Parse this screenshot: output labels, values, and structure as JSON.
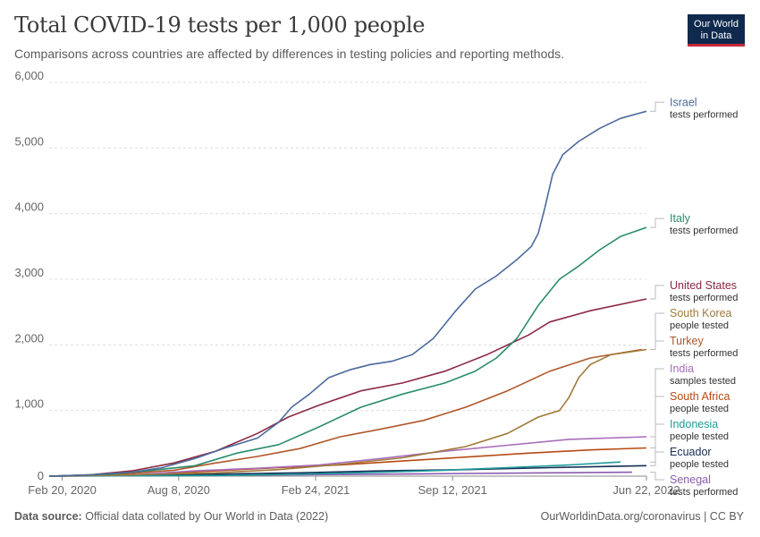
{
  "header": {
    "title": "Total COVID-19 tests per 1,000 people",
    "subtitle": "Comparisons across countries are affected by differences in testing policies and reporting methods.",
    "logo_line1": "Our World",
    "logo_line2": "in Data"
  },
  "footer": {
    "source_label": "Data source:",
    "source_text": "Official data collated by Our World in Data (2022)",
    "right_text": "OurWorldinData.org/coronavirus | CC BY"
  },
  "colors": {
    "israel": "#4c6a9c",
    "italy": "#2a8c6c",
    "united_states": "#8b2942",
    "south_korea": "#a07a3a",
    "turkey": "#b0572a",
    "india": "#a86cba",
    "south_africa": "#b84a12",
    "indonesia": "#1e9a9a",
    "ecuador": "#172d55",
    "senegal": "#8a5ab0"
  },
  "chart_data": {
    "type": "line",
    "x_type": "date",
    "xlim": [
      "2020-02-01",
      "2022-06-22"
    ],
    "ylim": [
      0,
      6000
    ],
    "y_ticks": [
      0,
      1000,
      2000,
      3000,
      4000,
      5000,
      6000
    ],
    "y_tick_labels": [
      "0",
      "1,000",
      "2,000",
      "3,000",
      "4,000",
      "5,000",
      "6,000"
    ],
    "x_ticks": [
      "2020-02-20",
      "2020-08-08",
      "2021-02-24",
      "2021-09-12",
      "2022-06-22"
    ],
    "x_tick_labels": [
      "Feb 20, 2020",
      "Aug 8, 2020",
      "Feb 24, 2021",
      "Sep 12, 2021",
      "Jun 22, 2022"
    ],
    "grid": "horizontal",
    "legend": "right",
    "series": [
      {
        "key": "israel",
        "name": "Israel",
        "sublabel": "tests performed",
        "color": "#4c6a9c",
        "points": [
          [
            "2020-02-01",
            0
          ],
          [
            "2020-04-01",
            20
          ],
          [
            "2020-06-01",
            60
          ],
          [
            "2020-07-15",
            130
          ],
          [
            "2020-09-01",
            270
          ],
          [
            "2020-10-15",
            430
          ],
          [
            "2020-12-01",
            580
          ],
          [
            "2021-01-01",
            820
          ],
          [
            "2021-01-20",
            1050
          ],
          [
            "2021-02-15",
            1250
          ],
          [
            "2021-03-15",
            1500
          ],
          [
            "2021-04-15",
            1620
          ],
          [
            "2021-05-15",
            1700
          ],
          [
            "2021-06-15",
            1750
          ],
          [
            "2021-07-15",
            1850
          ],
          [
            "2021-08-15",
            2100
          ],
          [
            "2021-09-15",
            2500
          ],
          [
            "2021-10-15",
            2850
          ],
          [
            "2021-11-15",
            3050
          ],
          [
            "2021-12-15",
            3300
          ],
          [
            "2022-01-05",
            3500
          ],
          [
            "2022-01-15",
            3700
          ],
          [
            "2022-01-25",
            4100
          ],
          [
            "2022-02-05",
            4600
          ],
          [
            "2022-02-20",
            4900
          ],
          [
            "2022-03-15",
            5100
          ],
          [
            "2022-04-15",
            5300
          ],
          [
            "2022-05-15",
            5450
          ],
          [
            "2022-06-22",
            5560
          ]
        ]
      },
      {
        "key": "italy",
        "name": "Italy",
        "sublabel": "tests performed",
        "color": "#2a8c6c",
        "points": [
          [
            "2020-02-01",
            0
          ],
          [
            "2020-05-01",
            30
          ],
          [
            "2020-07-01",
            90
          ],
          [
            "2020-09-01",
            160
          ],
          [
            "2020-11-01",
            350
          ],
          [
            "2021-01-01",
            480
          ],
          [
            "2021-03-01",
            750
          ],
          [
            "2021-05-01",
            1050
          ],
          [
            "2021-07-01",
            1250
          ],
          [
            "2021-09-01",
            1420
          ],
          [
            "2021-10-15",
            1600
          ],
          [
            "2021-11-15",
            1800
          ],
          [
            "2021-12-15",
            2100
          ],
          [
            "2022-01-15",
            2600
          ],
          [
            "2022-02-15",
            3000
          ],
          [
            "2022-03-15",
            3200
          ],
          [
            "2022-04-15",
            3450
          ],
          [
            "2022-05-15",
            3650
          ],
          [
            "2022-06-22",
            3790
          ]
        ]
      },
      {
        "key": "united_states",
        "name": "United States",
        "sublabel": "tests performed",
        "color": "#8b2942",
        "points": [
          [
            "2020-02-01",
            0
          ],
          [
            "2020-04-01",
            20
          ],
          [
            "2020-06-01",
            80
          ],
          [
            "2020-08-01",
            200
          ],
          [
            "2020-10-01",
            380
          ],
          [
            "2020-12-01",
            650
          ],
          [
            "2021-01-15",
            900
          ],
          [
            "2021-03-01",
            1080
          ],
          [
            "2021-05-01",
            1300
          ],
          [
            "2021-07-01",
            1420
          ],
          [
            "2021-09-01",
            1600
          ],
          [
            "2021-11-01",
            1850
          ],
          [
            "2022-01-01",
            2150
          ],
          [
            "2022-02-01",
            2350
          ],
          [
            "2022-04-01",
            2520
          ],
          [
            "2022-06-22",
            2700
          ]
        ]
      },
      {
        "key": "south_korea",
        "name": "South Korea",
        "sublabel": "people tested",
        "color": "#a07a3a",
        "points": [
          [
            "2020-02-01",
            0
          ],
          [
            "2020-06-01",
            20
          ],
          [
            "2020-10-01",
            50
          ],
          [
            "2021-01-01",
            100
          ],
          [
            "2021-04-01",
            180
          ],
          [
            "2021-07-01",
            280
          ],
          [
            "2021-10-01",
            450
          ],
          [
            "2021-12-01",
            650
          ],
          [
            "2022-01-15",
            900
          ],
          [
            "2022-02-15",
            1000
          ],
          [
            "2022-03-01",
            1200
          ],
          [
            "2022-03-15",
            1500
          ],
          [
            "2022-04-01",
            1700
          ],
          [
            "2022-05-01",
            1850
          ],
          [
            "2022-06-22",
            1930
          ]
        ]
      },
      {
        "key": "turkey",
        "name": "Turkey",
        "sublabel": "tests performed",
        "color": "#b0572a",
        "points": [
          [
            "2020-02-01",
            0
          ],
          [
            "2020-05-01",
            20
          ],
          [
            "2020-08-01",
            90
          ],
          [
            "2020-10-01",
            200
          ],
          [
            "2020-12-01",
            300
          ],
          [
            "2021-02-01",
            420
          ],
          [
            "2021-04-01",
            600
          ],
          [
            "2021-06-01",
            720
          ],
          [
            "2021-08-01",
            850
          ],
          [
            "2021-10-01",
            1050
          ],
          [
            "2021-12-01",
            1300
          ],
          [
            "2022-02-01",
            1600
          ],
          [
            "2022-04-01",
            1800
          ],
          [
            "2022-06-15",
            1930
          ]
        ]
      },
      {
        "key": "india",
        "name": "India",
        "sublabel": "samples tested",
        "color": "#a86cba",
        "points": [
          [
            "2020-02-01",
            0
          ],
          [
            "2020-06-01",
            20
          ],
          [
            "2020-09-01",
            80
          ],
          [
            "2020-12-01",
            120
          ],
          [
            "2021-03-01",
            170
          ],
          [
            "2021-06-01",
            270
          ],
          [
            "2021-09-01",
            380
          ],
          [
            "2021-12-01",
            470
          ],
          [
            "2022-03-01",
            560
          ],
          [
            "2022-06-22",
            600
          ]
        ]
      },
      {
        "key": "south_africa",
        "name": "South Africa",
        "sublabel": "people tested",
        "color": "#b84a12",
        "points": [
          [
            "2020-02-01",
            0
          ],
          [
            "2020-06-01",
            20
          ],
          [
            "2020-10-01",
            80
          ],
          [
            "2021-01-01",
            130
          ],
          [
            "2021-04-01",
            170
          ],
          [
            "2021-07-01",
            230
          ],
          [
            "2021-10-01",
            290
          ],
          [
            "2022-01-01",
            350
          ],
          [
            "2022-04-01",
            400
          ],
          [
            "2022-06-22",
            430
          ]
        ]
      },
      {
        "key": "indonesia",
        "name": "Indonesia",
        "sublabel": "people tested",
        "color": "#1e9a9a",
        "points": [
          [
            "2020-02-01",
            0
          ],
          [
            "2020-10-01",
            10
          ],
          [
            "2021-02-01",
            30
          ],
          [
            "2021-06-01",
            60
          ],
          [
            "2021-09-01",
            90
          ],
          [
            "2021-12-01",
            130
          ],
          [
            "2022-03-01",
            170
          ],
          [
            "2022-05-15",
            215
          ]
        ]
      },
      {
        "key": "ecuador",
        "name": "Ecuador",
        "sublabel": "people tested",
        "color": "#172d55",
        "points": [
          [
            "2020-02-01",
            0
          ],
          [
            "2020-06-01",
            10
          ],
          [
            "2020-10-01",
            30
          ],
          [
            "2021-02-01",
            50
          ],
          [
            "2021-06-01",
            80
          ],
          [
            "2021-10-01",
            100
          ],
          [
            "2022-02-01",
            130
          ],
          [
            "2022-06-22",
            160
          ]
        ]
      },
      {
        "key": "senegal",
        "name": "Senegal",
        "sublabel": "tests performed",
        "color": "#8a5ab0",
        "points": [
          [
            "2020-02-01",
            0
          ],
          [
            "2020-08-01",
            10
          ],
          [
            "2021-02-01",
            20
          ],
          [
            "2021-08-01",
            35
          ],
          [
            "2022-02-01",
            50
          ],
          [
            "2022-06-01",
            60
          ]
        ]
      }
    ]
  }
}
